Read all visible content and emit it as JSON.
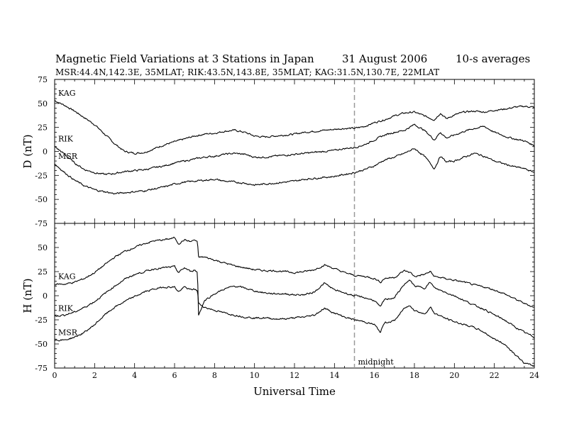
{
  "header": {
    "title": "Magnetic Field Variations at 3 Stations in Japan",
    "date": "31  August  2006",
    "averaging": "10-s averages",
    "stations_info": "MSR:44.4N,142.3E, 35MLAT;  RIK:43.5N,143.8E, 35MLAT;  KAG:31.5N,130.7E, 22MLAT"
  },
  "colors": {
    "trace": "#000000",
    "midnight_line": "#999999"
  },
  "chart_data": [
    {
      "type": "line",
      "panel": "top",
      "ylabel": "D (nT)",
      "ylim": [
        -75,
        75
      ],
      "yticks": [
        -75,
        -50,
        -25,
        0,
        25,
        50,
        75
      ],
      "xlim": [
        0,
        24
      ],
      "series": [
        {
          "name": "KAG",
          "x": [
            0,
            0.5,
            1,
            1.5,
            2,
            2.5,
            3,
            3.5,
            4,
            4.5,
            5,
            5.5,
            6,
            6.5,
            7,
            7.5,
            8,
            8.5,
            9,
            9.5,
            10,
            10.5,
            11,
            11.5,
            12,
            12.5,
            13,
            13.5,
            14,
            14.5,
            15,
            15.5,
            16,
            16.5,
            17,
            17.5,
            18,
            18.5,
            19,
            19.3,
            19.6,
            20,
            20.5,
            21,
            21.5,
            22,
            22.5,
            23,
            23.5,
            24
          ],
          "y": [
            53,
            48,
            42,
            35,
            28,
            18,
            8,
            0,
            -2,
            -1,
            3,
            7,
            10,
            13,
            16,
            18,
            19,
            21,
            22,
            20,
            16,
            15,
            16,
            17,
            18,
            20,
            21,
            22,
            23,
            24,
            24,
            26,
            30,
            33,
            37,
            40,
            41,
            37,
            33,
            40,
            34,
            38,
            41,
            42,
            41,
            43,
            44,
            46,
            47,
            46
          ]
        },
        {
          "name": "RIK",
          "x": [
            0,
            0.5,
            1,
            1.5,
            2,
            2.5,
            3,
            3.5,
            4,
            4.5,
            5,
            5.5,
            6,
            6.5,
            7,
            7.5,
            8,
            8.5,
            9,
            9.5,
            10,
            10.5,
            11,
            11.5,
            12,
            12.5,
            13,
            13.5,
            14,
            14.5,
            15,
            15.5,
            16,
            16.5,
            17,
            17.5,
            18,
            18.5,
            19,
            19.3,
            19.6,
            20,
            20.5,
            21,
            21.5,
            22,
            22.5,
            23,
            23.5,
            24
          ],
          "y": [
            5,
            -3,
            -12,
            -19,
            -22,
            -24,
            -23,
            -21,
            -20,
            -19,
            -17,
            -15,
            -12,
            -10,
            -8,
            -6,
            -5,
            -3,
            -2,
            -3,
            -6,
            -6,
            -5,
            -4,
            -3,
            -2,
            -1,
            0,
            1,
            3,
            4,
            7,
            12,
            17,
            20,
            22,
            28,
            22,
            12,
            20,
            14,
            17,
            21,
            24,
            26,
            20,
            16,
            13,
            11,
            6
          ]
        },
        {
          "name": "MSR",
          "x": [
            0,
            0.5,
            1,
            1.5,
            2,
            2.5,
            3,
            3.5,
            4,
            4.5,
            5,
            5.5,
            6,
            6.5,
            7,
            7.5,
            8,
            8.5,
            9,
            9.5,
            10,
            10.5,
            11,
            11.5,
            12,
            12.5,
            13,
            13.5,
            14,
            14.5,
            15,
            15.5,
            16,
            16.5,
            17,
            17.5,
            18,
            18.5,
            19,
            19.3,
            19.6,
            20,
            20.5,
            21,
            21.5,
            22,
            22.5,
            23,
            23.5,
            24
          ],
          "y": [
            -13,
            -22,
            -30,
            -36,
            -40,
            -42,
            -44,
            -43,
            -42,
            -41,
            -39,
            -37,
            -34,
            -32,
            -31,
            -30,
            -29,
            -31,
            -32,
            -33,
            -35,
            -34,
            -33,
            -32,
            -31,
            -29,
            -28,
            -27,
            -26,
            -24,
            -22,
            -19,
            -15,
            -9,
            -6,
            -2,
            3,
            -5,
            -18,
            -5,
            -11,
            -10,
            -6,
            -2,
            -5,
            -10,
            -13,
            -16,
            -18,
            -22
          ]
        }
      ]
    },
    {
      "type": "line",
      "panel": "bottom",
      "ylabel": "H (nT)",
      "xlabel": "Universal Time",
      "ylim": [
        -75,
        75
      ],
      "yticks": [
        -75,
        -50,
        -25,
        0,
        25,
        50,
        75
      ],
      "xlim": [
        0,
        24
      ],
      "xticks": [
        0,
        2,
        4,
        6,
        8,
        10,
        12,
        14,
        16,
        18,
        20,
        22,
        24
      ],
      "minor_xtick_step": 0.5,
      "midnight_x": 15,
      "midnight_label": "midnight",
      "series": [
        {
          "name": "KAG",
          "x": [
            0,
            0.5,
            1,
            1.5,
            2,
            2.5,
            3,
            3.5,
            4,
            4.5,
            5,
            5.5,
            6,
            6.2,
            6.5,
            6.8,
            7,
            7.15,
            7.2,
            7.5,
            8,
            8.5,
            9,
            9.5,
            10,
            10.5,
            11,
            11.5,
            12,
            12.5,
            13,
            13.5,
            14,
            14.5,
            15,
            15.5,
            16,
            16.3,
            16.5,
            17,
            17.5,
            17.8,
            18,
            18.5,
            18.8,
            19,
            19.5,
            20,
            20.5,
            21,
            21.5,
            22,
            22.5,
            23,
            23.5,
            24
          ],
          "y": [
            12,
            12,
            14,
            18,
            24,
            32,
            40,
            46,
            50,
            54,
            57,
            58,
            60,
            54,
            58,
            56,
            58,
            55,
            40,
            40,
            37,
            34,
            31,
            29,
            27,
            26,
            26,
            25,
            24,
            25,
            27,
            32,
            28,
            24,
            21,
            20,
            18,
            14,
            18,
            19,
            26,
            24,
            20,
            22,
            25,
            20,
            18,
            16,
            14,
            11,
            9,
            6,
            2,
            -3,
            -8,
            -12
          ]
        },
        {
          "name": "RIK",
          "x": [
            0,
            0.5,
            1,
            1.5,
            2,
            2.5,
            3,
            3.5,
            4,
            4.5,
            5,
            5.5,
            6,
            6.2,
            6.5,
            6.8,
            7,
            7.15,
            7.2,
            7.5,
            8,
            8.5,
            9,
            9.5,
            10,
            10.5,
            11,
            11.5,
            12,
            12.5,
            13,
            13.5,
            14,
            14.5,
            15,
            15.5,
            16,
            16.3,
            16.5,
            17,
            17.5,
            17.8,
            18,
            18.5,
            18.8,
            19,
            19.5,
            20,
            20.5,
            21,
            21.5,
            22,
            22.5,
            23,
            23.5,
            24
          ],
          "y": [
            -21,
            -20,
            -17,
            -12,
            -6,
            2,
            10,
            17,
            22,
            25,
            28,
            29,
            30,
            24,
            29,
            25,
            27,
            24,
            -20,
            -5,
            2,
            7,
            10,
            8,
            5,
            3,
            2,
            2,
            1,
            1,
            4,
            13,
            6,
            3,
            0,
            -2,
            -5,
            -12,
            -4,
            -2,
            12,
            16,
            10,
            8,
            14,
            8,
            4,
            0,
            -5,
            -10,
            -14,
            -20,
            -25,
            -32,
            -38,
            -43
          ]
        },
        {
          "name": "MSR",
          "x": [
            0,
            0.5,
            1,
            1.5,
            2,
            2.5,
            3,
            3.5,
            4,
            4.5,
            5,
            5.5,
            6,
            6.2,
            6.5,
            6.8,
            7,
            7.15,
            7.2,
            7.5,
            8,
            8.5,
            9,
            9.5,
            10,
            10.5,
            11,
            11.5,
            12,
            12.5,
            13,
            13.5,
            14,
            14.5,
            15,
            15.5,
            16,
            16.3,
            16.5,
            17,
            17.5,
            17.8,
            18,
            18.5,
            18.8,
            19,
            19.5,
            20,
            20.5,
            21,
            21.5,
            22,
            22.5,
            23,
            23.5,
            24
          ],
          "y": [
            -46,
            -46,
            -43,
            -38,
            -30,
            -20,
            -12,
            -6,
            -1,
            4,
            7,
            9,
            9,
            4,
            9,
            6,
            7,
            5,
            -8,
            -12,
            -15,
            -18,
            -20,
            -22,
            -23,
            -23,
            -24,
            -24,
            -23,
            -22,
            -20,
            -13,
            -18,
            -22,
            -25,
            -27,
            -30,
            -38,
            -28,
            -26,
            -13,
            -10,
            -15,
            -19,
            -12,
            -18,
            -23,
            -27,
            -30,
            -33,
            -38,
            -45,
            -50,
            -60,
            -70,
            -73
          ]
        }
      ]
    }
  ]
}
